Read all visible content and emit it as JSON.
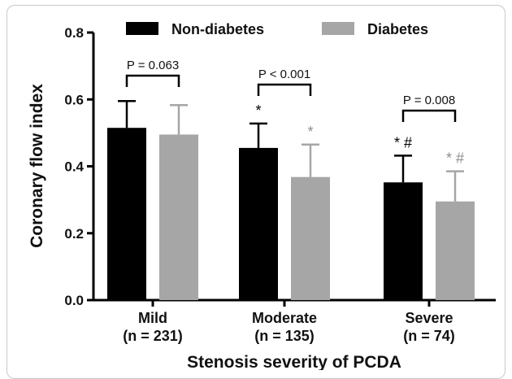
{
  "chart_data": {
    "type": "bar",
    "title": "",
    "xlabel": "Stenosis severity of PCDA",
    "ylabel": "Coronary flow index",
    "ylim": [
      0,
      0.8
    ],
    "yticks": [
      "0.0",
      "0.2",
      "0.4",
      "0.6",
      "0.8"
    ],
    "categories": [
      {
        "name": "Mild",
        "n": "(n = 231)"
      },
      {
        "name": "Moderate",
        "n": "(n = 135)"
      },
      {
        "name": "Severe",
        "n": "(n = 74)"
      }
    ],
    "series": [
      {
        "name": "Non-diabetes",
        "color": "#000000",
        "values": [
          0.515,
          0.455,
          0.352
        ],
        "errors": [
          0.08,
          0.073,
          0.08
        ],
        "markers": [
          "",
          "*",
          "* #"
        ]
      },
      {
        "name": "Diabetes",
        "color": "#a6a6a6",
        "values": [
          0.495,
          0.368,
          0.295
        ],
        "errors": [
          0.088,
          0.097,
          0.09
        ],
        "markers": [
          "",
          "*",
          "* #"
        ]
      }
    ],
    "comparisons": [
      "P = 0.063",
      "P < 0.001",
      "P = 0.008"
    ],
    "legend_position": "top",
    "grid": false
  }
}
